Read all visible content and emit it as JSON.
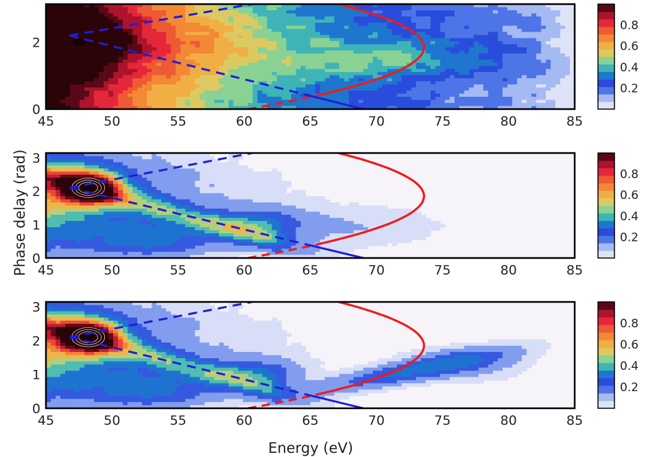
{
  "chart_data": [
    {
      "type": "heatmap",
      "panel": "top",
      "xlim": [
        45,
        85
      ],
      "ylim": [
        0,
        3.14
      ],
      "xticks": [
        "45",
        "50",
        "55",
        "60",
        "65",
        "70",
        "75",
        "80",
        "85"
      ],
      "yticks": [
        "0",
        "2"
      ],
      "colorbar": {
        "range": [
          0,
          1
        ],
        "ticks": [
          "0.2",
          "0.4",
          "0.6",
          "0.8"
        ]
      },
      "hotspot": {
        "x": 47.5,
        "y": 2.0,
        "value": 1.0
      },
      "red_curve": {
        "vertex_x": 73.6,
        "vertex_y": 1.85,
        "crosses_zero_at": 60.3
      },
      "blue_lines": [
        {
          "from": [
            46.8,
            2.2
          ],
          "to": [
            69.0,
            0.0
          ]
        },
        {
          "from": [
            46.8,
            2.2
          ],
          "to": [
            60.6,
            3.14
          ]
        }
      ]
    },
    {
      "type": "heatmap",
      "panel": "middle",
      "xlim": [
        45,
        85
      ],
      "ylim": [
        0,
        3.14
      ],
      "xticks": [
        "45",
        "50",
        "55",
        "60",
        "65",
        "70",
        "75",
        "80",
        "85"
      ],
      "yticks": [
        "0",
        "1",
        "2",
        "3"
      ],
      "ylabel": "Phase delay (rad)",
      "colorbar": {
        "range": [
          0,
          1
        ],
        "ticks": [
          "0.2",
          "0.4",
          "0.6",
          "0.8"
        ]
      },
      "hotspot": {
        "x": 48.2,
        "y": 2.1,
        "value": 1.0
      },
      "red_curve": {
        "vertex_x": 73.6,
        "vertex_y": 1.85,
        "crosses_zero_at": 60.3
      },
      "blue_lines": [
        {
          "from": [
            46.8,
            2.1
          ],
          "to": [
            69.0,
            0.0
          ]
        },
        {
          "from": [
            46.8,
            2.1
          ],
          "to": [
            60.6,
            3.14
          ]
        }
      ]
    },
    {
      "type": "heatmap",
      "panel": "bottom",
      "xlim": [
        45,
        85
      ],
      "ylim": [
        0,
        3.14
      ],
      "xticks": [
        "45",
        "50",
        "55",
        "60",
        "65",
        "70",
        "75",
        "80",
        "85"
      ],
      "yticks": [
        "0",
        "1",
        "2",
        "3"
      ],
      "xlabel": "Energy (eV)",
      "colorbar": {
        "range": [
          0,
          1
        ],
        "ticks": [
          "0.2",
          "0.4",
          "0.6",
          "0.8"
        ]
      },
      "hotspot": {
        "x": 48.2,
        "y": 2.1,
        "value": 1.0
      },
      "red_curve": {
        "vertex_x": 73.6,
        "vertex_y": 1.85,
        "crosses_zero_at": 60.3
      },
      "blue_lines": [
        {
          "from": [
            46.8,
            2.1
          ],
          "to": [
            69.0,
            0.0
          ]
        },
        {
          "from": [
            46.8,
            2.1
          ],
          "to": [
            60.6,
            3.14
          ]
        }
      ]
    }
  ],
  "colormap": [
    "#f7f4f9",
    "#b9c8f4",
    "#4a72e6",
    "#1f3fd8",
    "#1fa6c8",
    "#7fd39a",
    "#e8c85a",
    "#f5a23a",
    "#f06a30",
    "#e8283c",
    "#a01028",
    "#2a0408"
  ],
  "colors": {
    "red_curve": "#ee1b1b",
    "blue_line": "#1d1fd6",
    "frame": "#000000"
  }
}
